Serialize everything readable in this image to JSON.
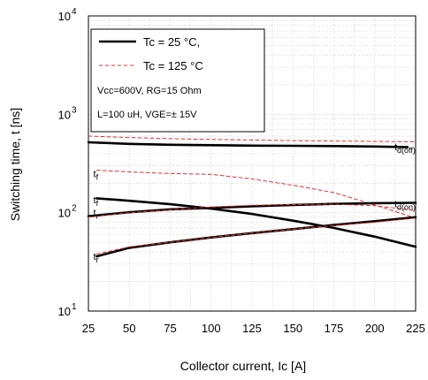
{
  "chart_data": {
    "type": "line",
    "xlabel": "Collector current, Ic [A]",
    "ylabel": "Switching time, t [ns]",
    "xlim": [
      25,
      225
    ],
    "ylim": [
      10,
      10000
    ],
    "yscale": "log",
    "grid": true,
    "x_ticks": [
      "25",
      "50",
      "75",
      "100",
      "125",
      "150",
      "175",
      "200",
      "225"
    ],
    "x_tick_values": [
      25,
      50,
      75,
      100,
      125,
      150,
      175,
      200,
      225
    ],
    "y_ticks": [
      {
        "base": "10",
        "exp": "1",
        "value": 10
      },
      {
        "base": "10",
        "exp": "2",
        "value": 100
      },
      {
        "base": "10",
        "exp": "3",
        "value": 1000
      },
      {
        "base": "10",
        "exp": "4",
        "value": 10000
      }
    ],
    "legend": {
      "placement": "top-left",
      "entries": [
        {
          "label": "Tc = 25 °C,",
          "style": "solid",
          "color": "#000000"
        },
        {
          "label": "Tc = 125 °C",
          "style": "dashed",
          "color": "#e03030"
        }
      ],
      "conditions": [
        "Vcc=600V, RG=15 Ohm",
        "L=100 uH, VGE=± 15V"
      ]
    },
    "curve_labels": [
      {
        "text": "td(off)",
        "x": 212,
        "y": 470
      },
      {
        "text": "tf",
        "x": 28,
        "y": 250
      },
      {
        "text": "tf",
        "x": 28,
        "y": 135
      },
      {
        "text": "td(on)",
        "x": 212,
        "y": 124
      },
      {
        "text": "tr",
        "x": 28,
        "y": 100
      },
      {
        "text": "tr",
        "x": 28,
        "y": 36
      }
    ],
    "series": [
      {
        "curve": "td(off)",
        "temperature": "25 °C",
        "style": "solid",
        "color": "#000000",
        "x": [
          25,
          50,
          75,
          100,
          125,
          150,
          175,
          200,
          220
        ],
        "y": [
          520,
          500,
          490,
          485,
          480,
          478,
          475,
          470,
          465
        ]
      },
      {
        "curve": "td(off)",
        "temperature": "125 °C",
        "style": "dashed",
        "color": "#e03030",
        "x": [
          25,
          50,
          75,
          100,
          125,
          150,
          175,
          200,
          225
        ],
        "y": [
          600,
          580,
          565,
          555,
          548,
          540,
          535,
          530,
          525
        ]
      },
      {
        "curve": "tf",
        "temperature": "25 °C",
        "style": "solid",
        "color": "#000000",
        "x": [
          30,
          50,
          75,
          100,
          125,
          150,
          175,
          200,
          225
        ],
        "y": [
          140,
          132,
          122,
          110,
          97,
          83,
          70,
          57,
          45
        ]
      },
      {
        "curve": "tf",
        "temperature": "125 °C",
        "style": "dashed",
        "color": "#e03030",
        "x": [
          30,
          50,
          75,
          100,
          125,
          150,
          175,
          200,
          225
        ],
        "y": [
          270,
          260,
          250,
          245,
          220,
          190,
          160,
          120,
          88
        ]
      },
      {
        "curve": "td(on)",
        "temperature": "25 °C",
        "style": "solid",
        "color": "#000000",
        "x": [
          25,
          50,
          75,
          100,
          125,
          150,
          175,
          200,
          225
        ],
        "y": [
          92,
          101,
          108,
          112,
          116,
          120,
          123,
          125,
          126
        ]
      },
      {
        "curve": "td(on)",
        "temperature": "125 °C",
        "style": "dashed",
        "color": "#e03030",
        "x": [
          25,
          50,
          75,
          100,
          125,
          150,
          175,
          200,
          225
        ],
        "y": [
          90,
          100,
          107,
          114,
          119,
          121,
          122,
          118,
          105
        ]
      },
      {
        "curve": "tr",
        "temperature": "25 °C",
        "style": "solid",
        "color": "#000000",
        "x": [
          30,
          50,
          75,
          100,
          125,
          150,
          175,
          200,
          225
        ],
        "y": [
          36,
          44,
          50,
          56,
          62,
          68,
          75,
          82,
          90
        ]
      },
      {
        "curve": "tr",
        "temperature": "125 °C",
        "style": "dashed",
        "color": "#e03030",
        "x": [
          30,
          50,
          75,
          100,
          125,
          150,
          175,
          200,
          225
        ],
        "y": [
          38,
          45,
          50,
          56,
          62,
          68,
          74,
          80,
          88
        ]
      }
    ]
  }
}
